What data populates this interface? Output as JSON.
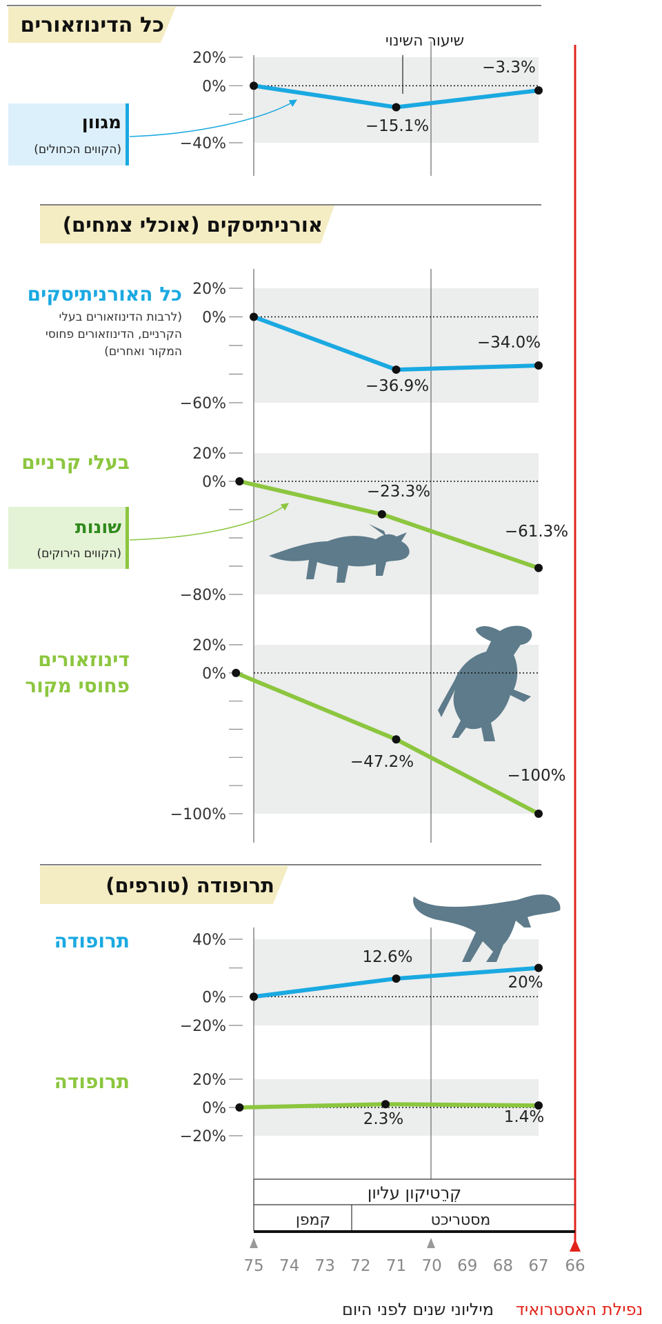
{
  "sections": [
    {
      "id": "all",
      "title": "כל הדינוזאורים"
    },
    {
      "id": "orn",
      "title": "אורניתיסקים (אוכלי צמחים)"
    },
    {
      "id": "thero",
      "title": "תרופודה (טורפים)"
    }
  ],
  "legend_blue": {
    "title": "מגוון",
    "sub": "(הקווים הכחולים)"
  },
  "legend_green": {
    "title": "שונות",
    "sub": "(הקווים הירוקים)"
  },
  "rate_label": "שיעור השינוי",
  "panel_labels": {
    "orn_all": "כל האורניתיסקים",
    "orn_all_note": [
      "(לרבות הדינוזאורים בעלי",
      "הקרניים, הדינוזאורים פחוסי",
      "המקור ואחרים)"
    ],
    "ceratopsians": "בעלי קרניים",
    "hadro_l1": "דינוזאורים",
    "hadro_l2": "פחוסי מקור",
    "thero_blue": "תרופודה",
    "thero_green": "תרופודה"
  },
  "timeline": {
    "period": "קְרֵטיקון עליון",
    "campanian": "קמפן",
    "maastrichtian": "מסטריכט",
    "ticks": [
      "75",
      "74",
      "73",
      "72",
      "71",
      "70",
      "69",
      "68",
      "67",
      "66"
    ],
    "xlabel": "מיליוני שנים לפני היום",
    "asteroid": "נפילת האסטרואיד"
  },
  "colors": {
    "blue": "#1aa9e1",
    "green": "#8cc63f",
    "red": "#e2231a",
    "band": "#eceded",
    "header_bg": "#f4ecc2",
    "dino": "#5d7b8a"
  },
  "chart_data": [
    {
      "id": "all_blue",
      "type": "line",
      "title": "כל הדינוזאורים",
      "series": [
        {
          "name": "מגוון",
          "x": [
            75,
            71,
            67
          ],
          "y": [
            0,
            -15.1,
            -3.3
          ]
        }
      ],
      "ticks": [
        "20%",
        "0%",
        "",
        "−40%"
      ],
      "tick_values": [
        20,
        0,
        -20,
        -40
      ],
      "ylim": [
        -40,
        20
      ],
      "labels": [
        "−15.1%",
        "−3.3%"
      ]
    },
    {
      "id": "orn_blue",
      "type": "line",
      "title": "כל האורניתיסקים",
      "series": [
        {
          "name": "מגוון",
          "x": [
            75,
            71,
            67
          ],
          "y": [
            0,
            -36.9,
            -34.0
          ]
        }
      ],
      "ticks": [
        "20%",
        "0%",
        "",
        "",
        "−60%"
      ],
      "tick_values": [
        20,
        0,
        -20,
        -40,
        -60
      ],
      "ylim": [
        -60,
        20
      ],
      "labels": [
        "−36.9%",
        "−34.0%"
      ]
    },
    {
      "id": "cera_green",
      "type": "line",
      "title": "בעלי קרניים",
      "series": [
        {
          "name": "שונות",
          "x": [
            75.4,
            71.4,
            67
          ],
          "y": [
            0,
            -23.3,
            -61.3
          ]
        }
      ],
      "ticks": [
        "20%",
        "0%",
        "",
        "",
        "",
        "−80%"
      ],
      "tick_values": [
        20,
        0,
        -20,
        -40,
        -60,
        -80
      ],
      "ylim": [
        -80,
        20
      ],
      "labels": [
        "−23.3%",
        "−61.3%"
      ]
    },
    {
      "id": "hadro_green",
      "type": "line",
      "title": "דינוזאורים פחוסי מקור",
      "series": [
        {
          "name": "שונות",
          "x": [
            75.5,
            71,
            67
          ],
          "y": [
            0,
            -47.2,
            -100
          ]
        }
      ],
      "ticks": [
        "20%",
        "0%",
        "",
        "",
        "",
        "",
        "−100%"
      ],
      "tick_values": [
        20,
        0,
        -20,
        -40,
        -60,
        -80,
        -100
      ],
      "ylim": [
        -100,
        20
      ],
      "labels": [
        "−47.2%",
        "−100%"
      ]
    },
    {
      "id": "thero_blue",
      "type": "line",
      "title": "תרופודה",
      "series": [
        {
          "name": "מגוון",
          "x": [
            75,
            71,
            67
          ],
          "y": [
            0,
            12.6,
            20
          ]
        }
      ],
      "ticks": [
        "40%",
        "",
        "0%",
        "−20%"
      ],
      "tick_values": [
        40,
        20,
        0,
        -20
      ],
      "ylim": [
        -20,
        40
      ],
      "labels": [
        "12.6%",
        "20%"
      ]
    },
    {
      "id": "thero_green",
      "type": "line",
      "title": "תרופודה",
      "series": [
        {
          "name": "שונות",
          "x": [
            75.4,
            71.3,
            67
          ],
          "y": [
            0,
            2.3,
            1.4
          ]
        }
      ],
      "ticks": [
        "20%",
        "0%",
        "−20%"
      ],
      "tick_values": [
        20,
        0,
        -20
      ],
      "ylim": [
        -20,
        20
      ],
      "labels": [
        "2.3%",
        "1.4%"
      ]
    }
  ]
}
